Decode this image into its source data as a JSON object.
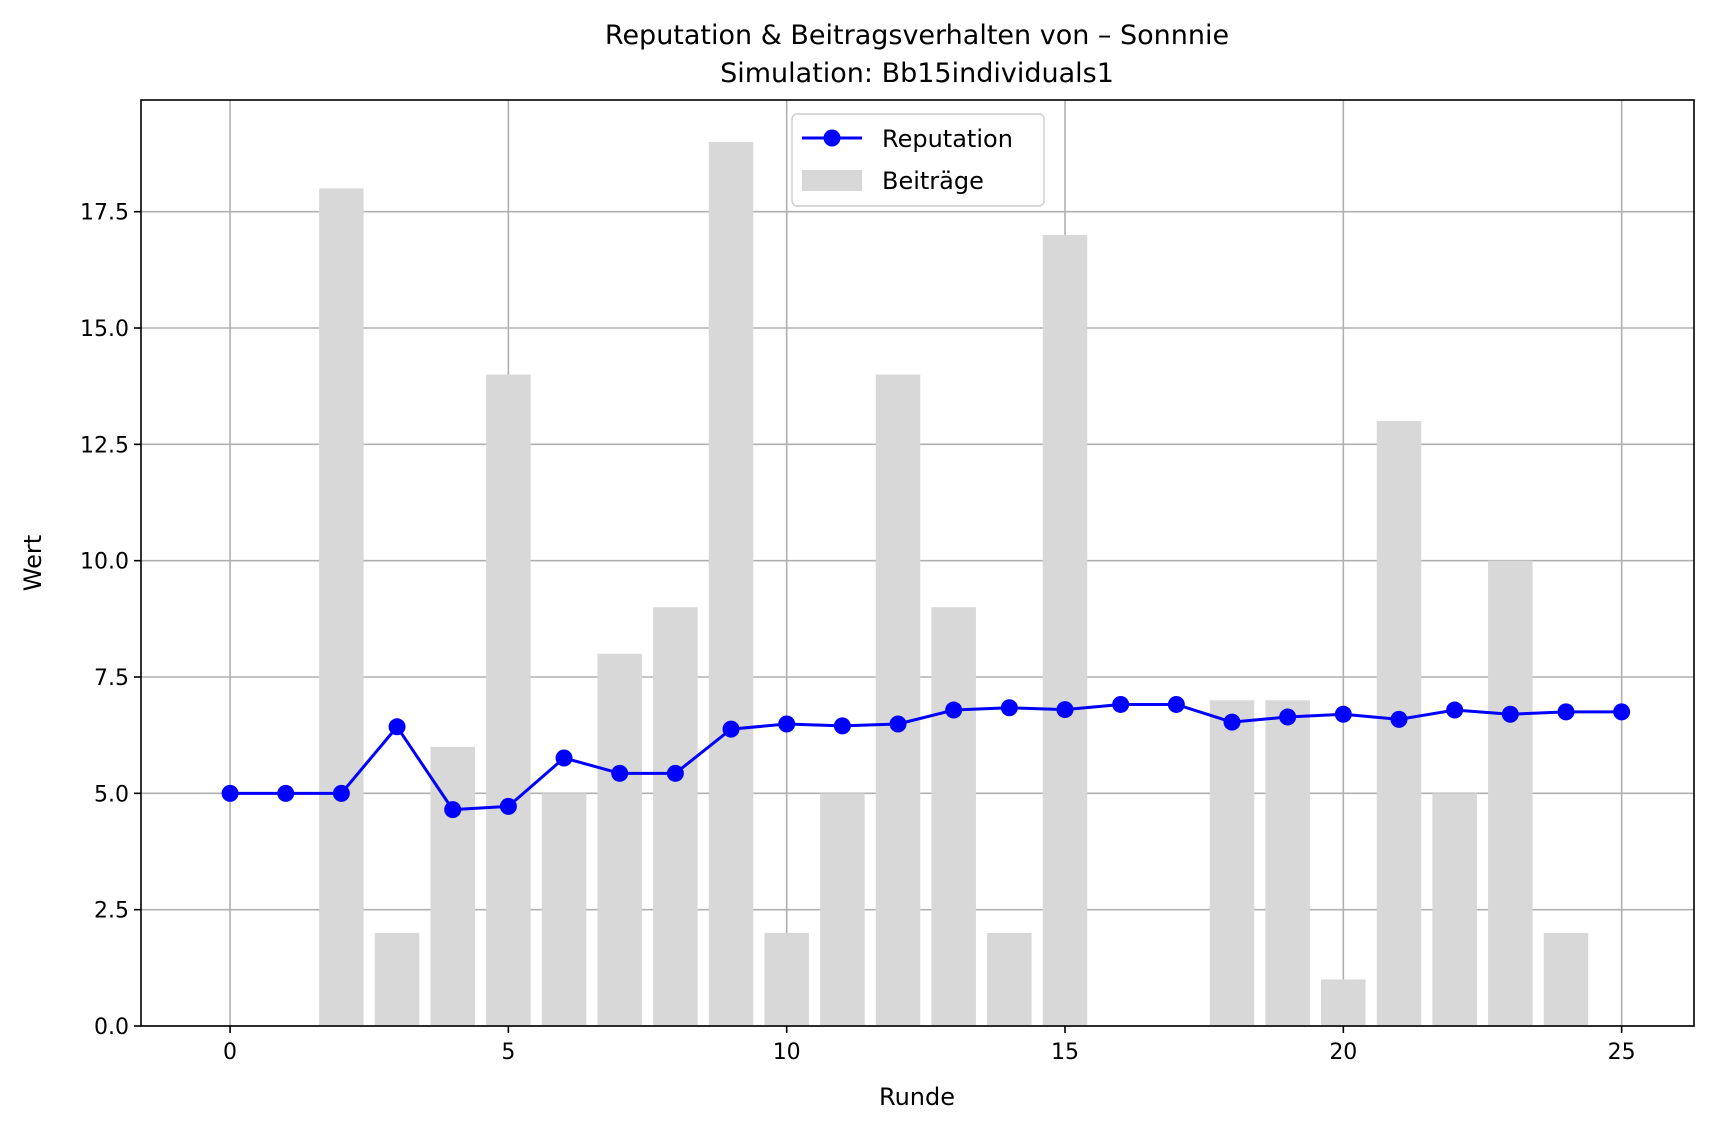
{
  "chart_data": {
    "type": "bar",
    "title": "Reputation & Beitragsverhalten von – Sonnnie",
    "subtitle": "Simulation: Bb15individuals1",
    "xlabel": "Runde",
    "ylabel": "Wert",
    "xlim": [
      -1.6,
      26.3
    ],
    "ylim": [
      0,
      19.9
    ],
    "x_ticks": [
      0,
      5,
      10,
      15,
      20,
      25
    ],
    "y_ticks": [
      0.0,
      2.5,
      5.0,
      7.5,
      10.0,
      12.5,
      15.0,
      17.5
    ],
    "y_tick_labels": [
      "0.0",
      "2.5",
      "5.0",
      "7.5",
      "10.0",
      "12.5",
      "15.0",
      "17.5"
    ],
    "grid": true,
    "legend_position": "top-center",
    "x": [
      0,
      1,
      2,
      3,
      4,
      5,
      6,
      7,
      8,
      9,
      10,
      11,
      12,
      13,
      14,
      15,
      16,
      17,
      18,
      19,
      20,
      21,
      22,
      23,
      24,
      25
    ],
    "series": [
      {
        "name": "Beiträge",
        "type": "bar",
        "color": "#d8d8d8",
        "bar_width": 0.8,
        "values": [
          0,
          0,
          18,
          2,
          6,
          14,
          5,
          8,
          9,
          19,
          2,
          5,
          14,
          9,
          2,
          17,
          0,
          0,
          7,
          7,
          1,
          13,
          5,
          10,
          2,
          0
        ]
      },
      {
        "name": "Reputation",
        "type": "line",
        "marker": "circle",
        "color": "#0000ff",
        "values": [
          5.0,
          5.0,
          5.0,
          6.43,
          4.65,
          4.72,
          5.76,
          5.43,
          5.43,
          6.38,
          6.49,
          6.45,
          6.49,
          6.79,
          6.84,
          6.8,
          6.91,
          6.91,
          6.53,
          6.64,
          6.7,
          6.59,
          6.79,
          6.7,
          6.75,
          6.75
        ]
      }
    ]
  }
}
